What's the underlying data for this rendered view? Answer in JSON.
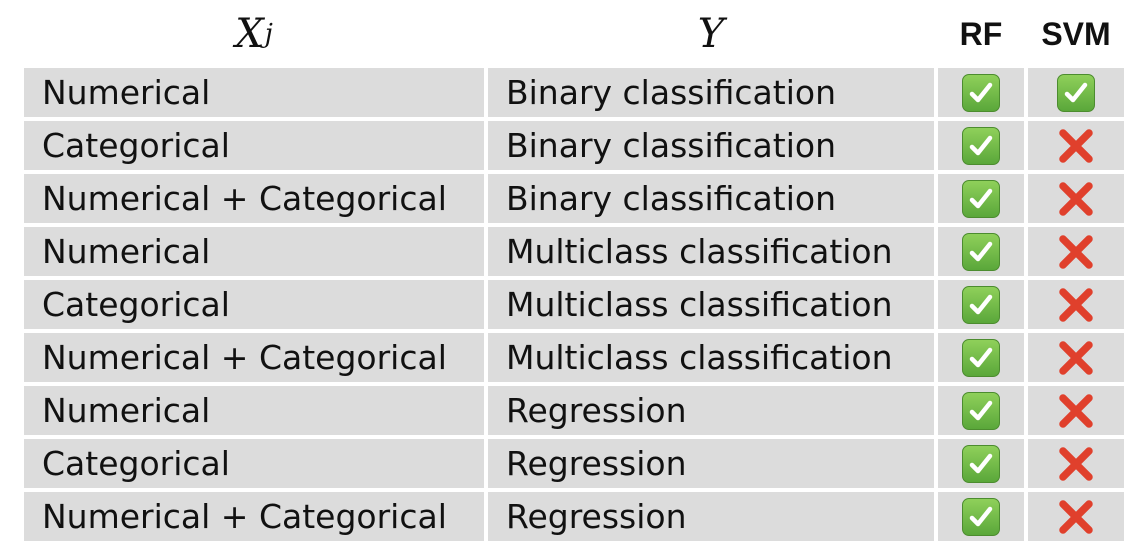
{
  "header": {
    "x_var": "X",
    "x_sub": "j",
    "y_var": "Y",
    "rf": "RF",
    "svm": "SVM"
  },
  "colors": {
    "cell_bg": "#dcdcdc",
    "check_green": "#6bbd45",
    "cross_red": "#e0402c"
  },
  "rows": [
    {
      "x": "Numerical",
      "y": "Binary classification",
      "rf": "check-icon",
      "svm": "check-icon"
    },
    {
      "x": "Categorical",
      "y": "Binary classification",
      "rf": "check-icon",
      "svm": "cross-icon"
    },
    {
      "x": "Numerical + Categorical",
      "y": "Binary classification",
      "rf": "check-icon",
      "svm": "cross-icon"
    },
    {
      "x": "Numerical",
      "y": "Multiclass classification",
      "rf": "check-icon",
      "svm": "cross-icon"
    },
    {
      "x": "Categorical",
      "y": "Multiclass classification",
      "rf": "check-icon",
      "svm": "cross-icon"
    },
    {
      "x": "Numerical + Categorical",
      "y": "Multiclass classification",
      "rf": "check-icon",
      "svm": "cross-icon"
    },
    {
      "x": "Numerical",
      "y": "Regression",
      "rf": "check-icon",
      "svm": "cross-icon"
    },
    {
      "x": "Categorical",
      "y": "Regression",
      "rf": "check-icon",
      "svm": "cross-icon"
    },
    {
      "x": "Numerical + Categorical",
      "y": "Regression",
      "rf": "check-icon",
      "svm": "cross-icon"
    }
  ]
}
